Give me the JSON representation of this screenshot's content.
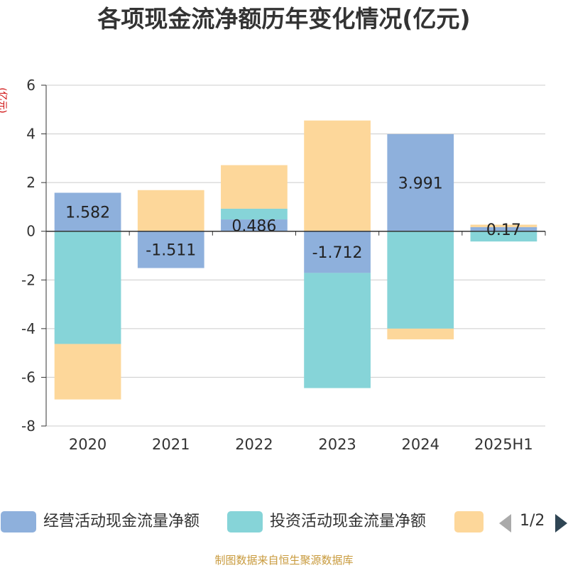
{
  "chart_data": {
    "type": "bar",
    "stacked": true,
    "title": "各项现金流净额历年变化情况(亿元)",
    "ylabel": "(亿元)",
    "xlabel": "",
    "categories": [
      "2020",
      "2021",
      "2022",
      "2023",
      "2024",
      "2025H1"
    ],
    "ylim": [
      -8,
      6
    ],
    "yticks": [
      6,
      4,
      2,
      0,
      -2,
      -4,
      -6,
      -8
    ],
    "grid": true,
    "series": [
      {
        "name": "经营活动现金流量净额",
        "color": "#8eb0dc",
        "values": [
          1.582,
          -1.511,
          0.486,
          -1.712,
          3.991,
          0.17
        ],
        "labels": [
          "1.582",
          "-1.511",
          "0.486",
          "-1.712",
          "3.991",
          "0.17"
        ]
      },
      {
        "name": "投资活动现金流量净额",
        "color": "#86d4d8",
        "values": [
          -4.63,
          0,
          0.44,
          -4.73,
          -4.0,
          -0.42
        ]
      },
      {
        "name": "",
        "color": "#fdd79a",
        "values": [
          -2.28,
          1.69,
          1.79,
          4.55,
          -0.44,
          0.1
        ]
      }
    ],
    "legend_position": "bottom"
  },
  "legend": {
    "page_indicator": "1/2",
    "prev_icon": "triangle-left-icon",
    "next_icon": "triangle-right-icon"
  },
  "source": "制图数据来自恒生聚源数据库"
}
